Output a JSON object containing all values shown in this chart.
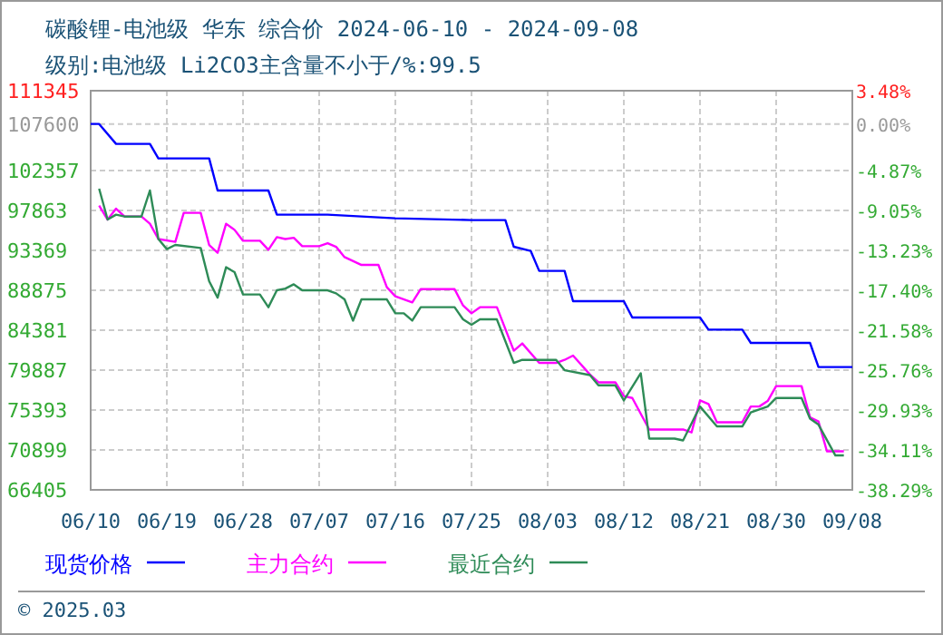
{
  "chart_data": {
    "type": "line",
    "title": "碳酸锂-电池级 华东 综合价 2024-06-10 - 2024-09-08",
    "subtitle": "级别:电池级 Li2CO3主含量不小于/%:99.5",
    "annotations": [
      "© 2025.03"
    ],
    "xlim": [
      "--06-10",
      "--09-08"
    ],
    "xticks": [
      {
        "value": "--06-10",
        "label": "06/10"
      },
      {
        "value": "--06-19",
        "label": "06/19"
      },
      {
        "value": "--06-28",
        "label": "06/28"
      },
      {
        "value": "--07-07",
        "label": "07/07"
      },
      {
        "value": "--07-16",
        "label": "07/16"
      },
      {
        "value": "--07-25",
        "label": "07/25"
      },
      {
        "value": "--08-03",
        "label": "08/03"
      },
      {
        "value": "--08-12",
        "label": "08/12"
      },
      {
        "value": "--08-21",
        "label": "08/21"
      },
      {
        "value": "--08-30",
        "label": "08/30"
      },
      {
        "value": "--09-08",
        "label": "09/08"
      }
    ],
    "ylim": [
      66405,
      111345
    ],
    "yticks": [
      66405,
      70899,
      75393,
      79887,
      84381,
      88875,
      93369,
      97863,
      102357,
      107600,
      111345
    ],
    "y2lim": [
      -38.29,
      3.48
    ],
    "y2ticks": [
      {
        "value": -38.29,
        "label": "-38.29%"
      },
      {
        "value": -34.11,
        "label": "-34.11%"
      },
      {
        "value": -29.93,
        "label": "-29.93%"
      },
      {
        "value": -25.76,
        "label": "-25.76%"
      },
      {
        "value": -21.58,
        "label": "-21.58%"
      },
      {
        "value": -17.4,
        "label": "-17.40%"
      },
      {
        "value": -13.23,
        "label": "-13.23%"
      },
      {
        "value": -9.05,
        "label": "-9.05%"
      },
      {
        "value": -4.87,
        "label": "-4.87%"
      },
      {
        "value": 0,
        "label": "0.00%"
      },
      {
        "value": 3.48,
        "label": "3.48%"
      }
    ],
    "grid": true,
    "legend": "bottom",
    "series": [
      {
        "name": "现货价格",
        "color": "#0000ff",
        "x": [
          "--06-10",
          "--06-11",
          "--06-13",
          "--06-17",
          "--06-18",
          "--06-24",
          "--06-25",
          "--07-01",
          "--07-02",
          "--07-08",
          "--07-16",
          "--07-25",
          "--07-29",
          "--07-30",
          "--08-01",
          "--08-02",
          "--08-05",
          "--08-06",
          "--08-12",
          "--08-13",
          "--08-21",
          "--08-22",
          "--08-26",
          "--08-27",
          "--09-03",
          "--09-04",
          "--09-08"
        ],
        "values": [
          107600,
          107600,
          105360,
          105360,
          103725,
          103725,
          100110,
          100110,
          97390,
          97390,
          96980,
          96780,
          96780,
          93775,
          93300,
          91060,
          91060,
          87650,
          87650,
          85810,
          85810,
          84440,
          84440,
          82950,
          82950,
          80230,
          80230
        ]
      },
      {
        "name": "主力合约",
        "color": "#ff00ff",
        "x": [
          "--06-11",
          "--06-12",
          "--06-13",
          "--06-14",
          "--06-16",
          "--06-17",
          "--06-18",
          "--06-20",
          "--06-21",
          "--06-23",
          "--06-24",
          "--06-25",
          "--06-26",
          "--06-27",
          "--06-28",
          "--06-30",
          "--07-01",
          "--07-02",
          "--07-03",
          "--07-04",
          "--07-05",
          "--07-07",
          "--07-08",
          "--07-09",
          "--07-10",
          "--07-12",
          "--07-14",
          "--07-15",
          "--07-16",
          "--07-18",
          "--07-19",
          "--07-23",
          "--07-24",
          "--07-25",
          "--07-26",
          "--07-28",
          "--07-30",
          "--07-31",
          "--08-02",
          "--08-04",
          "--08-05",
          "--08-06",
          "--08-08",
          "--08-09",
          "--08-11",
          "--08-12",
          "--08-13",
          "--08-15",
          "--08-19",
          "--08-20",
          "--08-21",
          "--08-22",
          "--08-23",
          "--08-26",
          "--08-27",
          "--08-28",
          "--08-29",
          "--08-30",
          "--09-02",
          "--09-03",
          "--09-04",
          "--09-05",
          "--09-07"
        ],
        "values": [
          98410,
          96840,
          98065,
          97180,
          97180,
          96370,
          94650,
          94330,
          97600,
          97600,
          93980,
          93100,
          96370,
          95680,
          94450,
          94450,
          93430,
          94860,
          94650,
          94790,
          93840,
          93840,
          94180,
          93770,
          92610,
          91730,
          91730,
          89220,
          88200,
          87510,
          89010,
          89010,
          87170,
          86280,
          86970,
          86970,
          82070,
          82890,
          80700,
          80700,
          81040,
          81520,
          79390,
          78510,
          78510,
          76960,
          76750,
          73200,
          73200,
          72870,
          76470,
          76080,
          74020,
          74020,
          75790,
          75790,
          76410,
          78090,
          78090,
          74570,
          74100,
          70750,
          70750
        ]
      },
      {
        "name": "最近合约",
        "color": "#2e8b57",
        "x": [
          "--06-11",
          "--06-12",
          "--06-13",
          "--06-14",
          "--06-16",
          "--06-17",
          "--06-18",
          "--06-19",
          "--06-20",
          "--06-23",
          "--06-24",
          "--06-25",
          "--06-26",
          "--06-27",
          "--06-28",
          "--06-30",
          "--07-01",
          "--07-02",
          "--07-03",
          "--07-04",
          "--07-05",
          "--07-08",
          "--07-09",
          "--07-10",
          "--07-11",
          "--07-12",
          "--07-15",
          "--07-16",
          "--07-17",
          "--07-18",
          "--07-19",
          "--07-23",
          "--07-24",
          "--07-25",
          "--07-26",
          "--07-28",
          "--07-30",
          "--07-31",
          "--08-04",
          "--08-05",
          "--08-08",
          "--08-09",
          "--08-11",
          "--08-12",
          "--08-14",
          "--08-15",
          "--08-18",
          "--08-19",
          "--08-21",
          "--08-23",
          "--08-26",
          "--08-27",
          "--08-29",
          "--08-30",
          "--09-02",
          "--09-03",
          "--09-04",
          "--09-06",
          "--09-07"
        ],
        "values": [
          100310,
          96840,
          97390,
          97180,
          97180,
          100110,
          94650,
          93510,
          93980,
          93640,
          89890,
          88050,
          91470,
          90915,
          88400,
          88400,
          86970,
          88870,
          89070,
          89550,
          88870,
          88870,
          88530,
          87850,
          85460,
          87850,
          87850,
          86280,
          86280,
          85460,
          86970,
          86970,
          85600,
          84990,
          85600,
          85600,
          80700,
          81040,
          81040,
          79880,
          79330,
          78170,
          78170,
          76470,
          79540,
          72180,
          72180,
          71970,
          75790,
          73550,
          73550,
          75120,
          75790,
          76750,
          76750,
          74430,
          73750,
          70280,
          70280
        ]
      }
    ]
  }
}
